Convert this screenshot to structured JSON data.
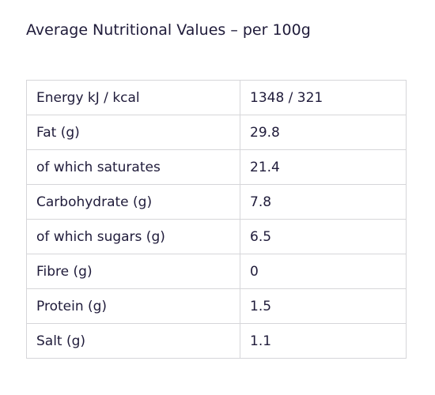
{
  "heading": "Average Nutritional Values – per 100g",
  "table": {
    "rows": [
      {
        "label": "Energy kJ / kcal",
        "value": "1348 / 321"
      },
      {
        "label": "Fat (g)",
        "value": "29.8"
      },
      {
        "label": "of which saturates",
        "value": "21.4"
      },
      {
        "label": "Carbohydrate (g)",
        "value": "7.8"
      },
      {
        "label": "of which sugars (g)",
        "value": "6.5"
      },
      {
        "label": "Fibre (g)",
        "value": "0"
      },
      {
        "label": "Protein (g)",
        "value": "1.5"
      },
      {
        "label": "Salt (g)",
        "value": "1.1"
      }
    ]
  }
}
